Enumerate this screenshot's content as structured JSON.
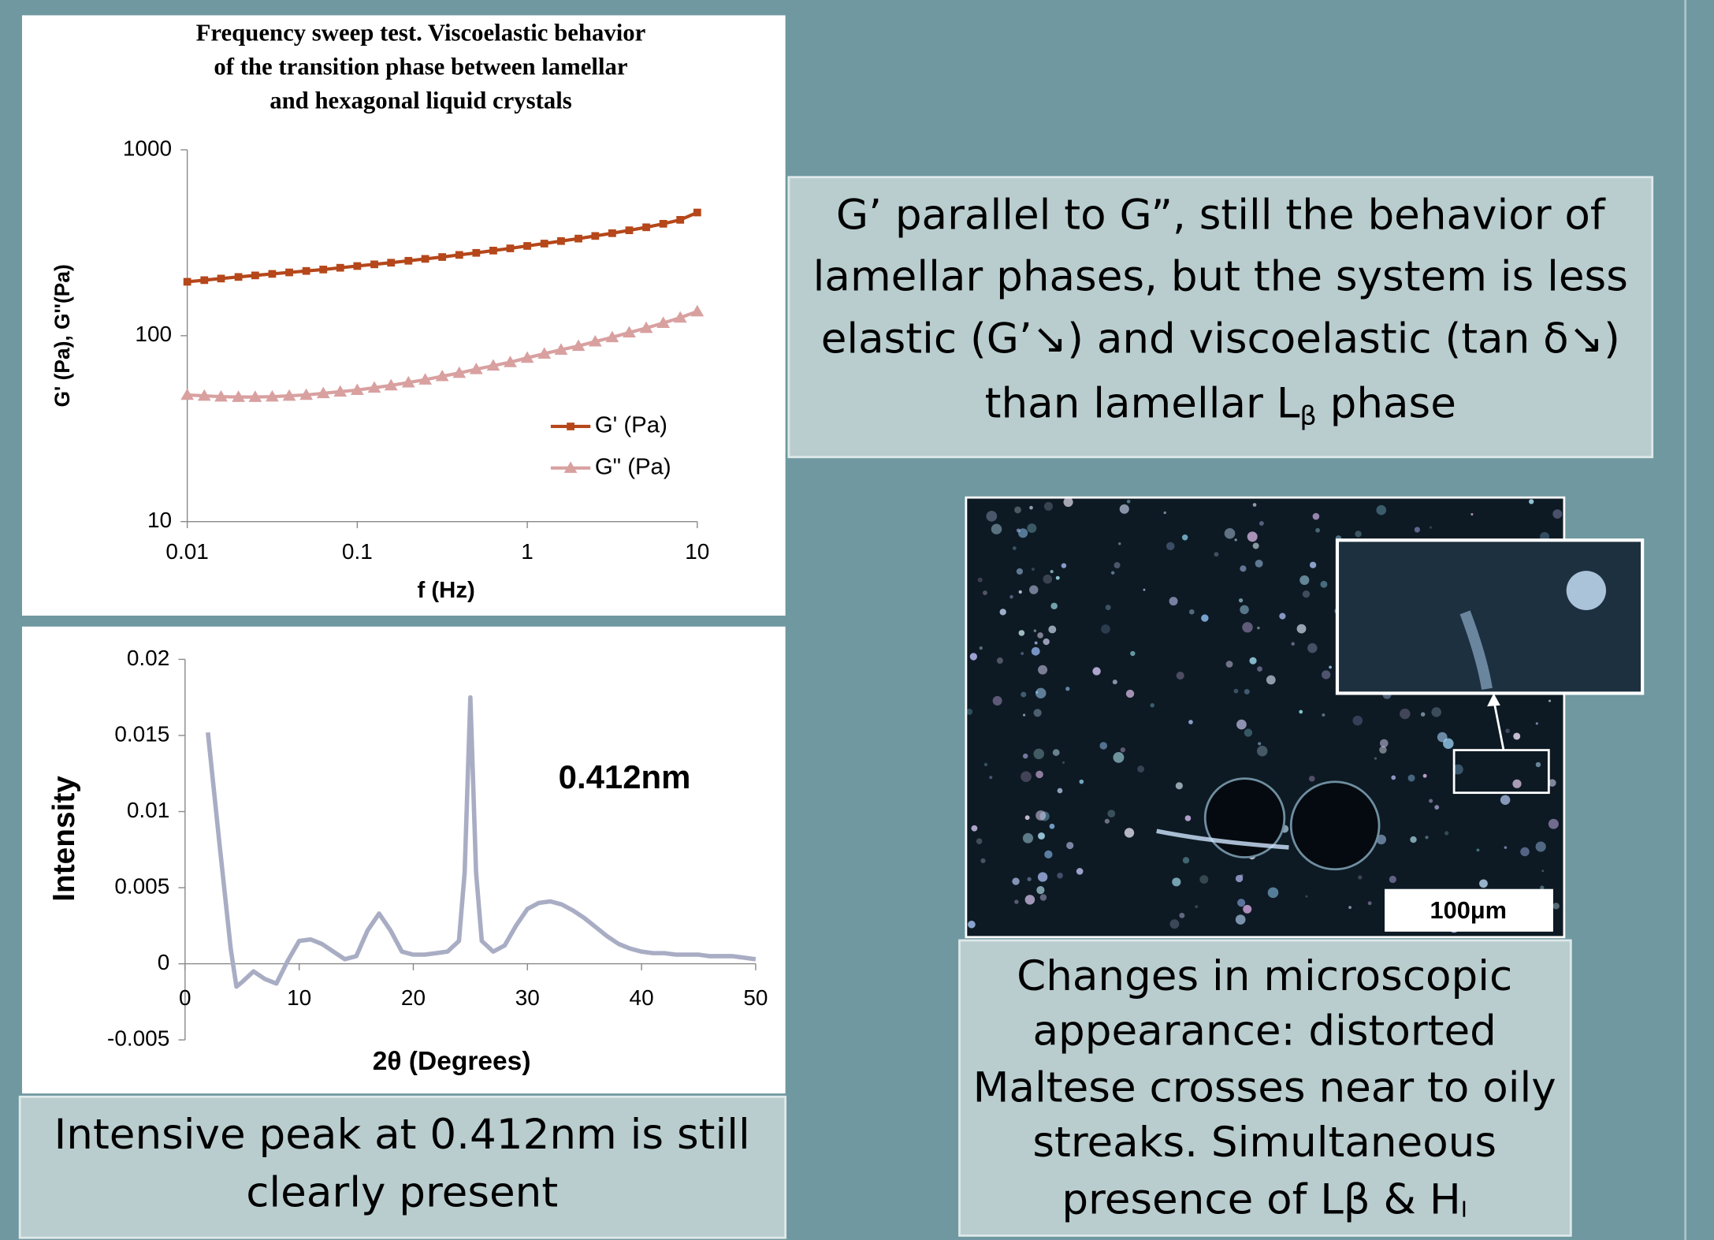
{
  "chart_data": [
    {
      "type": "line",
      "title": [
        "Frequency sweep test. Viscoelastic behavior",
        "of the transition phase between lamellar",
        "and hexagonal liquid crystals"
      ],
      "x_label": "f (Hz)",
      "y_label": "G' (Pa), G''(Pa)",
      "x": [
        0.01,
        0.0126,
        0.0158,
        0.02,
        0.0251,
        0.0316,
        0.0398,
        0.0501,
        0.0631,
        0.0794,
        0.1,
        0.126,
        0.158,
        0.2,
        0.251,
        0.316,
        0.398,
        0.501,
        0.631,
        0.794,
        1,
        1.26,
        1.58,
        2,
        2.51,
        3.16,
        3.98,
        5.01,
        6.31,
        7.94,
        10
      ],
      "series": [
        {
          "name": "G' (Pa)",
          "color": "#b5471a",
          "marker": "square",
          "values": [
            195,
            199,
            203,
            207,
            211,
            215,
            219,
            223,
            227,
            232,
            237,
            242,
            247,
            253,
            259,
            265,
            272,
            279,
            287,
            295,
            304,
            313,
            323,
            333,
            344,
            356,
            369,
            383,
            400,
            420,
            460
          ]
        },
        {
          "name": "G\" (Pa)",
          "color": "#d9a0a0",
          "marker": "triangle",
          "values": [
            48,
            47.5,
            47,
            46.8,
            46.8,
            47,
            47.5,
            48,
            49,
            50,
            51,
            52.5,
            54,
            56,
            58,
            60.5,
            63,
            66,
            69,
            72,
            76,
            80,
            84,
            88,
            93,
            98,
            104,
            110,
            117,
            125,
            135
          ]
        }
      ],
      "x_log": true,
      "y_log": true,
      "xlim": [
        0.01,
        10
      ],
      "xticks": [
        0.01,
        0.1,
        1,
        10
      ],
      "ylim": [
        10,
        1000
      ],
      "yticks": [
        10,
        100,
        1000
      ],
      "legend": "right"
    },
    {
      "type": "line",
      "x_label": "2θ (Degrees)",
      "y_label": "Intensity",
      "annotation": "0.412nm",
      "x": [
        2,
        3,
        4,
        4.5,
        5,
        6,
        7,
        8,
        9,
        10,
        11,
        12,
        13,
        14,
        15,
        16,
        17,
        18,
        19,
        20,
        21,
        22,
        23,
        24,
        24.5,
        25,
        25.5,
        26,
        27,
        28,
        29,
        30,
        31,
        32,
        33,
        34,
        35,
        36,
        37,
        38,
        39,
        40,
        41,
        42,
        43,
        44,
        45,
        46,
        47,
        48,
        49,
        50
      ],
      "series": [
        {
          "color": "#a9adc4",
          "values": [
            0.0152,
            0.008,
            0.001,
            -0.0015,
            -0.0012,
            -0.0005,
            -0.001,
            -0.0013,
            0.0002,
            0.0015,
            0.0016,
            0.0013,
            0.0008,
            0.0003,
            0.0005,
            0.0022,
            0.0033,
            0.0022,
            0.0008,
            0.0006,
            0.0006,
            0.0007,
            0.0008,
            0.0015,
            0.006,
            0.0175,
            0.006,
            0.0015,
            0.0008,
            0.0012,
            0.0025,
            0.0036,
            0.004,
            0.0041,
            0.0039,
            0.0035,
            0.003,
            0.0024,
            0.0018,
            0.0013,
            0.001,
            0.0008,
            0.0007,
            0.0007,
            0.0006,
            0.0006,
            0.0006,
            0.0005,
            0.0005,
            0.0005,
            0.0004,
            0.0003
          ]
        }
      ],
      "xlim": [
        0,
        50
      ],
      "xticks": [
        0,
        10,
        20,
        30,
        40,
        50
      ],
      "ylim": [
        -0.005,
        0.02
      ],
      "yticks": [
        -0.005,
        0,
        0.005,
        0.01,
        0.015,
        0.02
      ]
    }
  ],
  "rheology_note": {
    "lines": [
      "G’ parallel to G”, still the behavior of",
      "lamellar phases, but the system is less",
      "elastic (G’↘) and viscoelastic (tan δ↘)"
    ],
    "last_line": [
      "than lamellar L",
      "β",
      " phase"
    ]
  },
  "xrd_note": {
    "lines": [
      "Intensive peak at 0.412nm is still",
      "clearly present"
    ]
  },
  "micrograph": {
    "scale_bar": "100μm"
  },
  "microscopy_note": {
    "lines": [
      "Changes in microscopic",
      "appearance: distorted",
      "Maltese crosses near to oily",
      "streaks. Simultaneous"
    ],
    "last_line": [
      "presence of Lβ & H",
      "I"
    ]
  }
}
